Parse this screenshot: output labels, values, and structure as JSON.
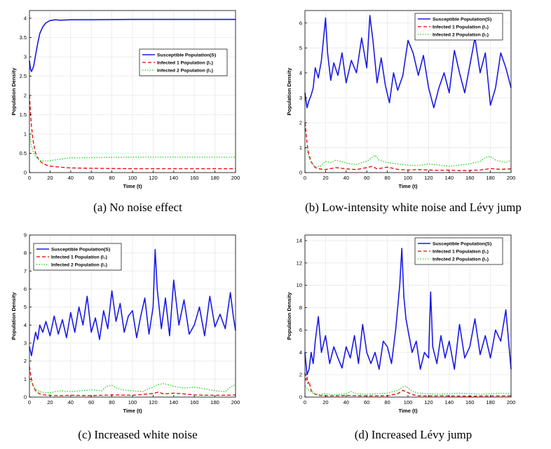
{
  "figure": {
    "captions": [
      "(a) No noise effect",
      "(b) Low-intensity white noise and Lévy jump",
      "(c) Increased white noise",
      "(d) Increased Lévy jump"
    ]
  },
  "colors": {
    "susceptible": "#1a1ae6",
    "infected1": "#e60000",
    "infected2": "#1fd11f",
    "axis": "#000000",
    "grid": "#e8e8e8"
  },
  "chart_data": [
    {
      "type": "line",
      "id": "a",
      "xlabel": "Time (t)",
      "ylabel": "Population Density",
      "xlim": [
        0,
        200
      ],
      "ylim": [
        0,
        4.2
      ],
      "xticks": [
        0,
        20,
        40,
        60,
        80,
        100,
        120,
        140,
        160,
        180,
        200
      ],
      "yticks": [
        0,
        0.5,
        1,
        1.5,
        2,
        2.5,
        3,
        3.5,
        4
      ],
      "grid": true,
      "legend": "upper-right",
      "series": [
        {
          "name": "Susceptible Population(S)",
          "style": "solid",
          "x": [
            0,
            1,
            2,
            4,
            6,
            8,
            10,
            13,
            16,
            20,
            25,
            30,
            40,
            60,
            100,
            200
          ],
          "y": [
            2.9,
            2.68,
            2.62,
            2.75,
            3.05,
            3.35,
            3.6,
            3.78,
            3.88,
            3.94,
            3.96,
            3.95,
            3.96,
            3.96,
            3.97,
            3.97
          ]
        },
        {
          "name": "Infected 1 Population  (I₁)",
          "style": "dashed",
          "x": [
            0,
            1,
            2,
            3,
            4,
            6,
            8,
            10,
            13,
            16,
            20,
            30,
            40,
            60,
            100,
            200
          ],
          "y": [
            2.0,
            1.55,
            1.2,
            0.95,
            0.75,
            0.5,
            0.38,
            0.3,
            0.24,
            0.2,
            0.17,
            0.14,
            0.12,
            0.11,
            0.1,
            0.1
          ]
        },
        {
          "name": "Infected 2 Population  (I₂)",
          "style": "dotted",
          "x": [
            0,
            1,
            2,
            4,
            6,
            8,
            10,
            13,
            16,
            20,
            30,
            40,
            60,
            100,
            200
          ],
          "y": [
            1.0,
            0.82,
            0.68,
            0.52,
            0.42,
            0.36,
            0.32,
            0.3,
            0.3,
            0.31,
            0.35,
            0.38,
            0.39,
            0.4,
            0.4
          ]
        }
      ]
    },
    {
      "type": "line",
      "id": "b",
      "xlabel": "Time (t)",
      "ylabel": "Population Density",
      "xlim": [
        0,
        200
      ],
      "ylim": [
        0,
        6.5
      ],
      "xticks": [
        0,
        20,
        40,
        60,
        80,
        100,
        120,
        140,
        160,
        180,
        200
      ],
      "yticks": [
        0,
        1,
        2,
        3,
        4,
        5,
        6
      ],
      "grid": true,
      "legend": "upper-right",
      "series": [
        {
          "name": "Susceptible Population(S)",
          "style": "solid",
          "x": [
            0,
            2,
            4,
            6,
            8,
            10,
            13,
            16,
            20,
            22,
            25,
            28,
            32,
            36,
            40,
            45,
            50,
            55,
            60,
            63,
            66,
            70,
            74,
            78,
            82,
            86,
            90,
            95,
            100,
            105,
            110,
            115,
            120,
            125,
            130,
            135,
            140,
            145,
            150,
            155,
            160,
            165,
            170,
            175,
            180,
            185,
            190,
            195,
            200
          ],
          "y": [
            3.2,
            2.6,
            2.9,
            3.1,
            3.4,
            4.2,
            3.8,
            4.5,
            6.2,
            4.8,
            3.7,
            4.4,
            3.9,
            4.8,
            3.6,
            4.5,
            4.0,
            5.4,
            4.2,
            6.3,
            5.3,
            3.6,
            4.6,
            3.5,
            2.8,
            4.0,
            3.3,
            3.9,
            5.3,
            4.8,
            3.9,
            4.7,
            3.4,
            2.6,
            3.4,
            4.0,
            3.2,
            4.9,
            4.0,
            3.2,
            4.3,
            5.4,
            4.0,
            4.8,
            2.7,
            3.4,
            4.8,
            4.2,
            3.4
          ]
        },
        {
          "name": "Infected 1 Population  (I₁)",
          "style": "dashed",
          "x": [
            0,
            1,
            2,
            3,
            4,
            6,
            8,
            10,
            14,
            20,
            30,
            40,
            50,
            60,
            65,
            70,
            80,
            90,
            100,
            110,
            120,
            130,
            140,
            150,
            160,
            170,
            180,
            190,
            200
          ],
          "y": [
            2.0,
            1.6,
            1.2,
            0.9,
            0.7,
            0.45,
            0.3,
            0.2,
            0.15,
            0.12,
            0.2,
            0.15,
            0.12,
            0.2,
            0.25,
            0.15,
            0.22,
            0.13,
            0.1,
            0.12,
            0.1,
            0.09,
            0.1,
            0.08,
            0.09,
            0.1,
            0.16,
            0.13,
            0.15
          ]
        },
        {
          "name": "Infected 2 Population  (I₂)",
          "style": "dotted",
          "x": [
            0,
            2,
            4,
            6,
            8,
            10,
            15,
            20,
            25,
            30,
            35,
            40,
            45,
            50,
            55,
            60,
            65,
            68,
            72,
            80,
            90,
            100,
            110,
            120,
            130,
            140,
            150,
            160,
            170,
            175,
            180,
            185,
            190,
            195,
            200
          ],
          "y": [
            1.0,
            0.9,
            0.6,
            0.4,
            0.3,
            0.25,
            0.25,
            0.45,
            0.4,
            0.5,
            0.45,
            0.38,
            0.35,
            0.32,
            0.4,
            0.45,
            0.6,
            0.7,
            0.5,
            0.4,
            0.35,
            0.3,
            0.28,
            0.35,
            0.3,
            0.25,
            0.3,
            0.35,
            0.45,
            0.6,
            0.65,
            0.5,
            0.45,
            0.4,
            0.5
          ]
        }
      ]
    },
    {
      "type": "line",
      "id": "c",
      "xlabel": "Time (t)",
      "ylabel": "Population Density",
      "xlim": [
        0,
        200
      ],
      "ylim": [
        0,
        9
      ],
      "xticks": [
        0,
        20,
        40,
        60,
        80,
        100,
        120,
        140,
        160,
        180,
        200
      ],
      "yticks": [
        0,
        1,
        2,
        3,
        4,
        5,
        6,
        7,
        8,
        9
      ],
      "grid": true,
      "legend": "upper-left",
      "series": [
        {
          "name": "Susceptible Population(S)",
          "style": "solid",
          "x": [
            0,
            2,
            4,
            6,
            8,
            10,
            13,
            16,
            20,
            24,
            28,
            32,
            36,
            40,
            44,
            48,
            52,
            56,
            60,
            64,
            68,
            72,
            76,
            80,
            84,
            88,
            92,
            96,
            100,
            104,
            108,
            112,
            116,
            120,
            122,
            124,
            128,
            132,
            136,
            140,
            145,
            150,
            155,
            160,
            165,
            170,
            175,
            180,
            185,
            190,
            195,
            198,
            200
          ],
          "y": [
            2.8,
            2.3,
            3.0,
            3.6,
            3.2,
            4.0,
            3.6,
            4.2,
            3.4,
            4.5,
            3.5,
            4.3,
            3.3,
            4.7,
            3.6,
            5.0,
            4.0,
            5.6,
            3.6,
            4.4,
            3.2,
            4.8,
            3.8,
            5.9,
            4.2,
            5.2,
            3.6,
            4.5,
            4.8,
            3.3,
            4.5,
            5.5,
            3.5,
            5.0,
            8.2,
            6.0,
            3.8,
            5.5,
            3.4,
            6.5,
            4.0,
            5.4,
            3.5,
            4.0,
            5.0,
            3.4,
            5.6,
            3.9,
            4.6,
            3.8,
            5.8,
            4.4,
            3.7
          ]
        },
        {
          "name": "Infected 1 Population  (I₁)",
          "style": "dashed",
          "x": [
            0,
            1,
            2,
            3,
            4,
            6,
            8,
            10,
            14,
            20,
            30,
            40,
            60,
            80,
            100,
            110,
            120,
            125,
            130,
            140,
            150,
            160,
            170,
            180,
            190,
            200
          ],
          "y": [
            1.7,
            1.3,
            1.0,
            0.75,
            0.55,
            0.35,
            0.25,
            0.18,
            0.12,
            0.1,
            0.08,
            0.1,
            0.08,
            0.12,
            0.1,
            0.15,
            0.2,
            0.28,
            0.18,
            0.22,
            0.18,
            0.12,
            0.1,
            0.1,
            0.1,
            0.12
          ]
        },
        {
          "name": "Infected 2 Population  (I₂)",
          "style": "dotted",
          "x": [
            0,
            2,
            4,
            6,
            8,
            10,
            15,
            20,
            25,
            30,
            40,
            50,
            60,
            70,
            75,
            80,
            85,
            90,
            100,
            110,
            115,
            120,
            125,
            130,
            140,
            150,
            160,
            170,
            180,
            190,
            195,
            200
          ],
          "y": [
            1.0,
            0.8,
            0.6,
            0.45,
            0.35,
            0.3,
            0.25,
            0.25,
            0.3,
            0.35,
            0.3,
            0.35,
            0.4,
            0.35,
            0.6,
            0.65,
            0.5,
            0.4,
            0.35,
            0.3,
            0.45,
            0.55,
            0.7,
            0.75,
            0.6,
            0.5,
            0.55,
            0.45,
            0.35,
            0.3,
            0.55,
            0.7
          ]
        }
      ]
    },
    {
      "type": "line",
      "id": "d",
      "xlabel": "Time (t)",
      "ylabel": "Population Density",
      "xlim": [
        0,
        200
      ],
      "ylim": [
        0,
        14.5
      ],
      "xticks": [
        0,
        20,
        40,
        60,
        80,
        100,
        120,
        140,
        160,
        180,
        200
      ],
      "yticks": [
        0,
        2,
        4,
        6,
        8,
        10,
        12,
        14
      ],
      "grid": true,
      "legend": "upper-right",
      "series": [
        {
          "name": "Susceptible Population(S)",
          "style": "solid",
          "x": [
            0,
            2,
            4,
            6,
            8,
            10,
            13,
            16,
            20,
            24,
            28,
            32,
            36,
            40,
            44,
            48,
            52,
            56,
            60,
            64,
            68,
            72,
            76,
            80,
            84,
            88,
            92,
            94,
            96,
            98,
            100,
            104,
            108,
            112,
            116,
            120,
            122,
            124,
            128,
            132,
            136,
            140,
            145,
            150,
            155,
            160,
            165,
            170,
            175,
            180,
            185,
            190,
            195,
            200
          ],
          "y": [
            4.0,
            2.0,
            2.5,
            4.0,
            3.0,
            5.0,
            7.2,
            4.0,
            5.5,
            3.0,
            4.5,
            3.5,
            2.6,
            4.5,
            3.5,
            5.5,
            3.0,
            6.5,
            4.0,
            3.0,
            4.0,
            2.5,
            5.0,
            4.5,
            3.0,
            6.0,
            10.0,
            13.3,
            9.0,
            7.0,
            6.0,
            4.0,
            5.0,
            2.5,
            4.0,
            3.5,
            9.4,
            4.5,
            3.0,
            5.5,
            3.5,
            5.0,
            2.5,
            6.5,
            3.5,
            4.5,
            7.0,
            3.8,
            5.5,
            3.5,
            6.0,
            5.0,
            7.8,
            2.5
          ]
        },
        {
          "name": "Infected 1 Population  (I₁)",
          "style": "dashed",
          "x": [
            0,
            1,
            2,
            3,
            4,
            6,
            8,
            10,
            14,
            20,
            30,
            40,
            60,
            80,
            90,
            95,
            100,
            105,
            110,
            120,
            140,
            160,
            180,
            200
          ],
          "y": [
            2.2,
            1.5,
            1.8,
            1.2,
            1.4,
            0.6,
            0.4,
            0.25,
            0.15,
            0.12,
            0.1,
            0.15,
            0.1,
            0.12,
            0.3,
            0.6,
            0.4,
            0.2,
            0.12,
            0.1,
            0.1,
            0.08,
            0.1,
            0.1
          ]
        },
        {
          "name": "Infected 2 Population  (I₂)",
          "style": "dotted",
          "x": [
            0,
            2,
            4,
            6,
            8,
            10,
            15,
            20,
            25,
            30,
            40,
            45,
            50,
            60,
            70,
            80,
            90,
            95,
            98,
            100,
            105,
            110,
            120,
            130,
            140,
            150,
            160,
            170,
            180,
            190,
            200
          ],
          "y": [
            1.0,
            0.8,
            0.6,
            0.45,
            0.35,
            0.3,
            0.25,
            0.3,
            0.25,
            0.2,
            0.3,
            0.5,
            0.3,
            0.25,
            0.3,
            0.35,
            0.6,
            0.9,
            1.0,
            0.8,
            0.5,
            0.35,
            0.3,
            0.25,
            0.3,
            0.35,
            0.3,
            0.25,
            0.3,
            0.35,
            0.3
          ]
        }
      ]
    }
  ]
}
